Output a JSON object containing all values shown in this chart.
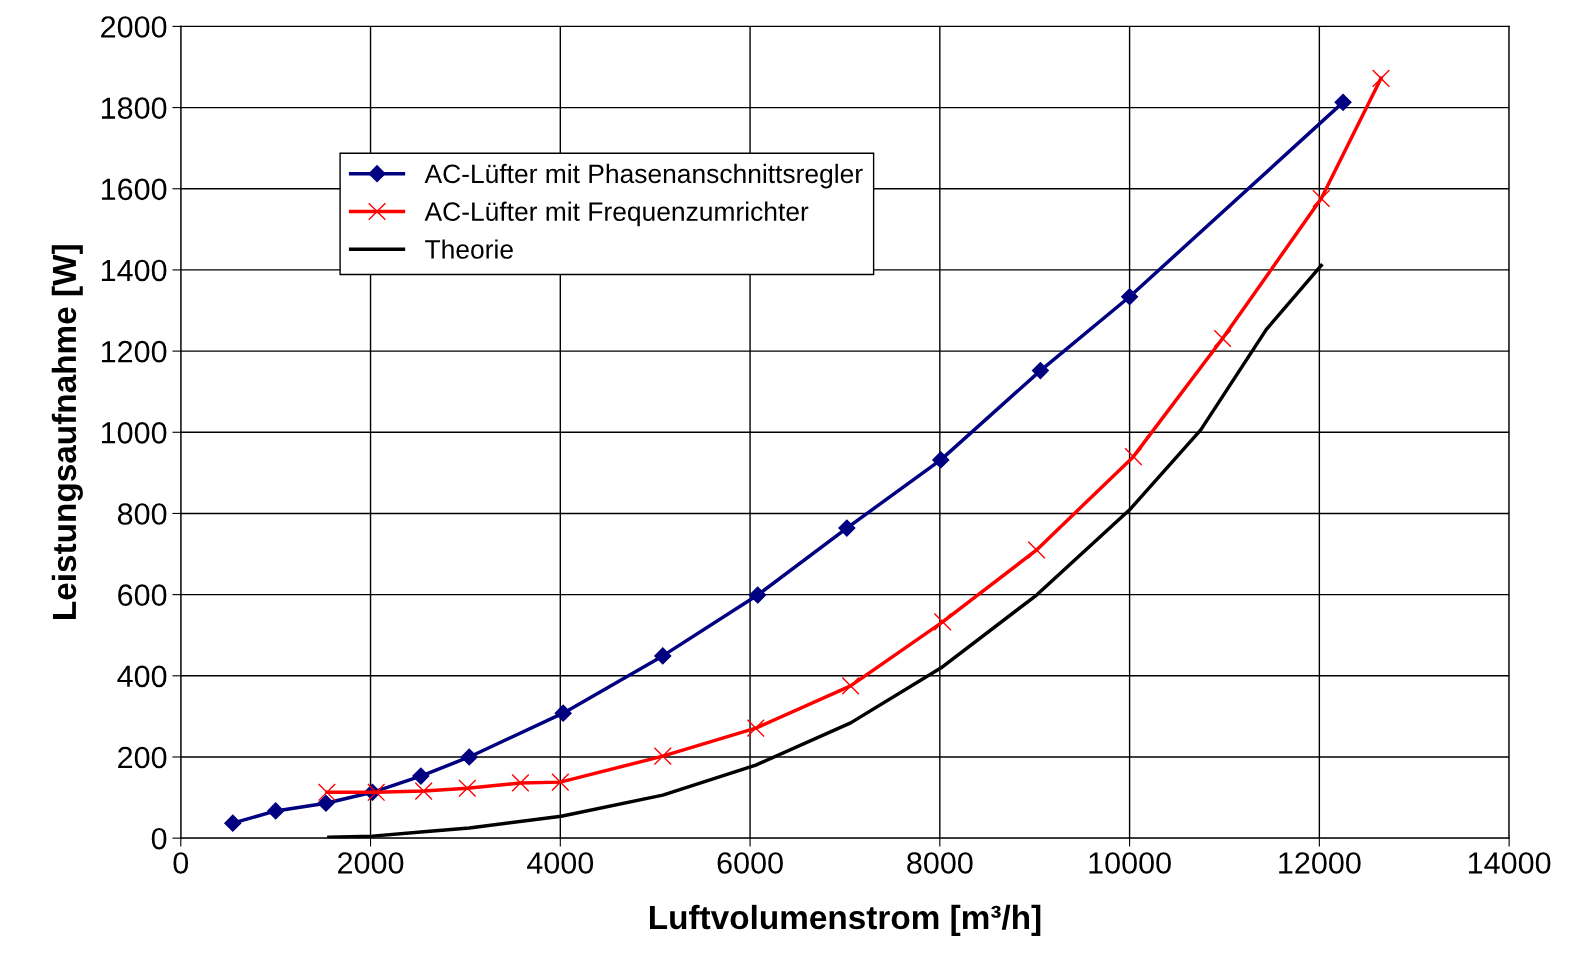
{
  "chart_data": {
    "type": "line",
    "xlabel": "Luftvolumenstrom [m³/h]",
    "ylabel": "Leistungsaufnahme [W]",
    "xlim": [
      0,
      14000
    ],
    "xticks": [
      0,
      2000,
      4000,
      6000,
      8000,
      10000,
      12000,
      14000
    ],
    "ylim": [
      0,
      2000
    ],
    "yticks": [
      0,
      200,
      400,
      600,
      800,
      1000,
      1200,
      1400,
      1600,
      1800,
      2000
    ],
    "grid": true,
    "legend": "top left",
    "series": [
      {
        "name": "AC-Lüfter mit Phasenanschnittsregler",
        "color": "#000080",
        "marker": "diamond",
        "x": [
          548,
          1000,
          1530,
          2020,
          2530,
          3040,
          4030,
          5080,
          6080,
          7020,
          8010,
          9060,
          10000,
          12250
        ],
        "values": [
          37,
          67,
          86,
          113,
          153,
          200,
          308,
          449,
          599,
          764,
          932,
          1152,
          1334,
          1813
        ]
      },
      {
        "name": "AC-Lüfter mit Frequenzumrichter",
        "color": "#ff0000",
        "marker": "cross",
        "x": [
          1540,
          2060,
          2560,
          3020,
          3580,
          4000,
          5080,
          6060,
          7060,
          8030,
          9020,
          10040,
          10980,
          12020,
          12650
        ],
        "values": [
          113,
          113,
          116,
          123,
          136,
          138,
          202,
          271,
          375,
          533,
          710,
          940,
          1231,
          1576,
          1872
        ]
      },
      {
        "name": "Theorie",
        "color": "#000000",
        "marker": "none",
        "x": [
          1560,
          2020,
          2530,
          3040,
          4010,
          5080,
          6060,
          7060,
          8010,
          9020,
          10000,
          10750,
          11440,
          12020
        ],
        "values": [
          2,
          5,
          15,
          25,
          54,
          106,
          180,
          284,
          419,
          599,
          809,
          1006,
          1253,
          1411
        ]
      }
    ]
  }
}
